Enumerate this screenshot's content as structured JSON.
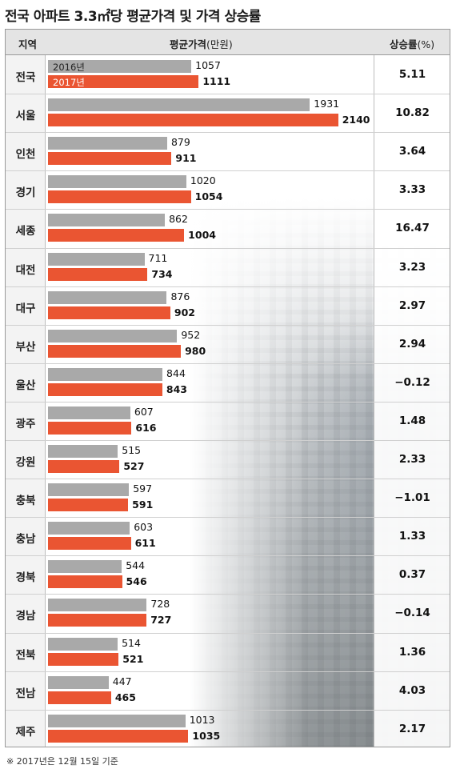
{
  "title": "전국 아파트 3.3㎡당 평균가격 및 가격 상승률",
  "header": {
    "region": "지역",
    "price_bold": "평균가격",
    "price_unit": "(만원)",
    "rate_bold": "상승률",
    "rate_unit": "(%)"
  },
  "footnote": "※ 2017년은 12월 15일 기준",
  "colors": {
    "y2016": "#a9a9a9",
    "y2017": "#ea5532"
  },
  "chart_data": {
    "type": "bar",
    "orientation": "horizontal",
    "title": "전국 아파트 3.3㎡당 평균가격 및 가격 상승률",
    "value_label": "평균가격(만원)",
    "rate_label": "상승률(%)",
    "categories": [
      "전국",
      "서울",
      "인천",
      "경기",
      "세종",
      "대전",
      "대구",
      "부산",
      "울산",
      "광주",
      "강원",
      "충북",
      "충남",
      "경북",
      "경남",
      "전북",
      "전남",
      "제주"
    ],
    "series": [
      {
        "name": "2016년",
        "values": [
          1057,
          1931,
          879,
          1020,
          862,
          711,
          876,
          952,
          844,
          607,
          515,
          597,
          603,
          544,
          728,
          514,
          447,
          1013
        ]
      },
      {
        "name": "2017년",
        "values": [
          1111,
          2140,
          911,
          1054,
          1004,
          734,
          902,
          980,
          843,
          616,
          527,
          591,
          611,
          546,
          727,
          521,
          465,
          1035
        ]
      }
    ],
    "rates": [
      "5.11",
      "10.82",
      "3.64",
      "3.33",
      "16.47",
      "3.23",
      "2.97",
      "2.94",
      "−0.12",
      "1.48",
      "2.33",
      "−1.01",
      "1.33",
      "0.37",
      "−0.14",
      "1.36",
      "4.03",
      "2.17"
    ],
    "legend": "inside-first-row"
  }
}
